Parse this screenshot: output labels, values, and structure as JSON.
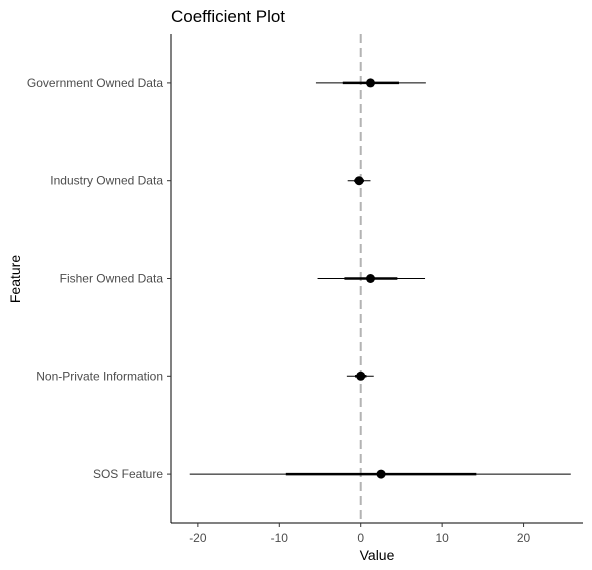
{
  "chart_data": {
    "type": "scatter",
    "title": "Coefficient Plot",
    "xlabel": "Value",
    "ylabel": "Feature",
    "xlim": [
      -23.3,
      27.3
    ],
    "xticks": [
      -20,
      -10,
      0,
      10,
      20
    ],
    "xtick_labels": [
      "-20",
      "-10",
      "0",
      "10",
      "20"
    ],
    "reference_line": 0,
    "grid": false,
    "categories": [
      "Government Owned Data",
      "Industry Owned Data",
      "Fisher Owned Data",
      "Non-Private Information",
      "SOS Feature"
    ],
    "points": [
      {
        "feature": "Government Owned Data",
        "value": 1.2,
        "inner": [
          -2.2,
          4.7
        ],
        "outer": [
          -5.5,
          8.0
        ]
      },
      {
        "feature": "Industry Owned Data",
        "value": -0.2,
        "inner": [
          -0.8,
          0.4
        ],
        "outer": [
          -1.6,
          1.2
        ]
      },
      {
        "feature": "Fisher Owned Data",
        "value": 1.2,
        "inner": [
          -2.0,
          4.5
        ],
        "outer": [
          -5.3,
          7.9
        ]
      },
      {
        "feature": "Non-Private Information",
        "value": 0.0,
        "inner": [
          -0.7,
          0.7
        ],
        "outer": [
          -1.7,
          1.6
        ]
      },
      {
        "feature": "SOS Feature",
        "value": 2.5,
        "inner": [
          -9.2,
          14.2
        ],
        "outer": [
          -21.0,
          25.8
        ]
      }
    ],
    "colors": {
      "point": "#000000",
      "reference_line": "#b3b3b3",
      "axis": "#000000"
    }
  }
}
